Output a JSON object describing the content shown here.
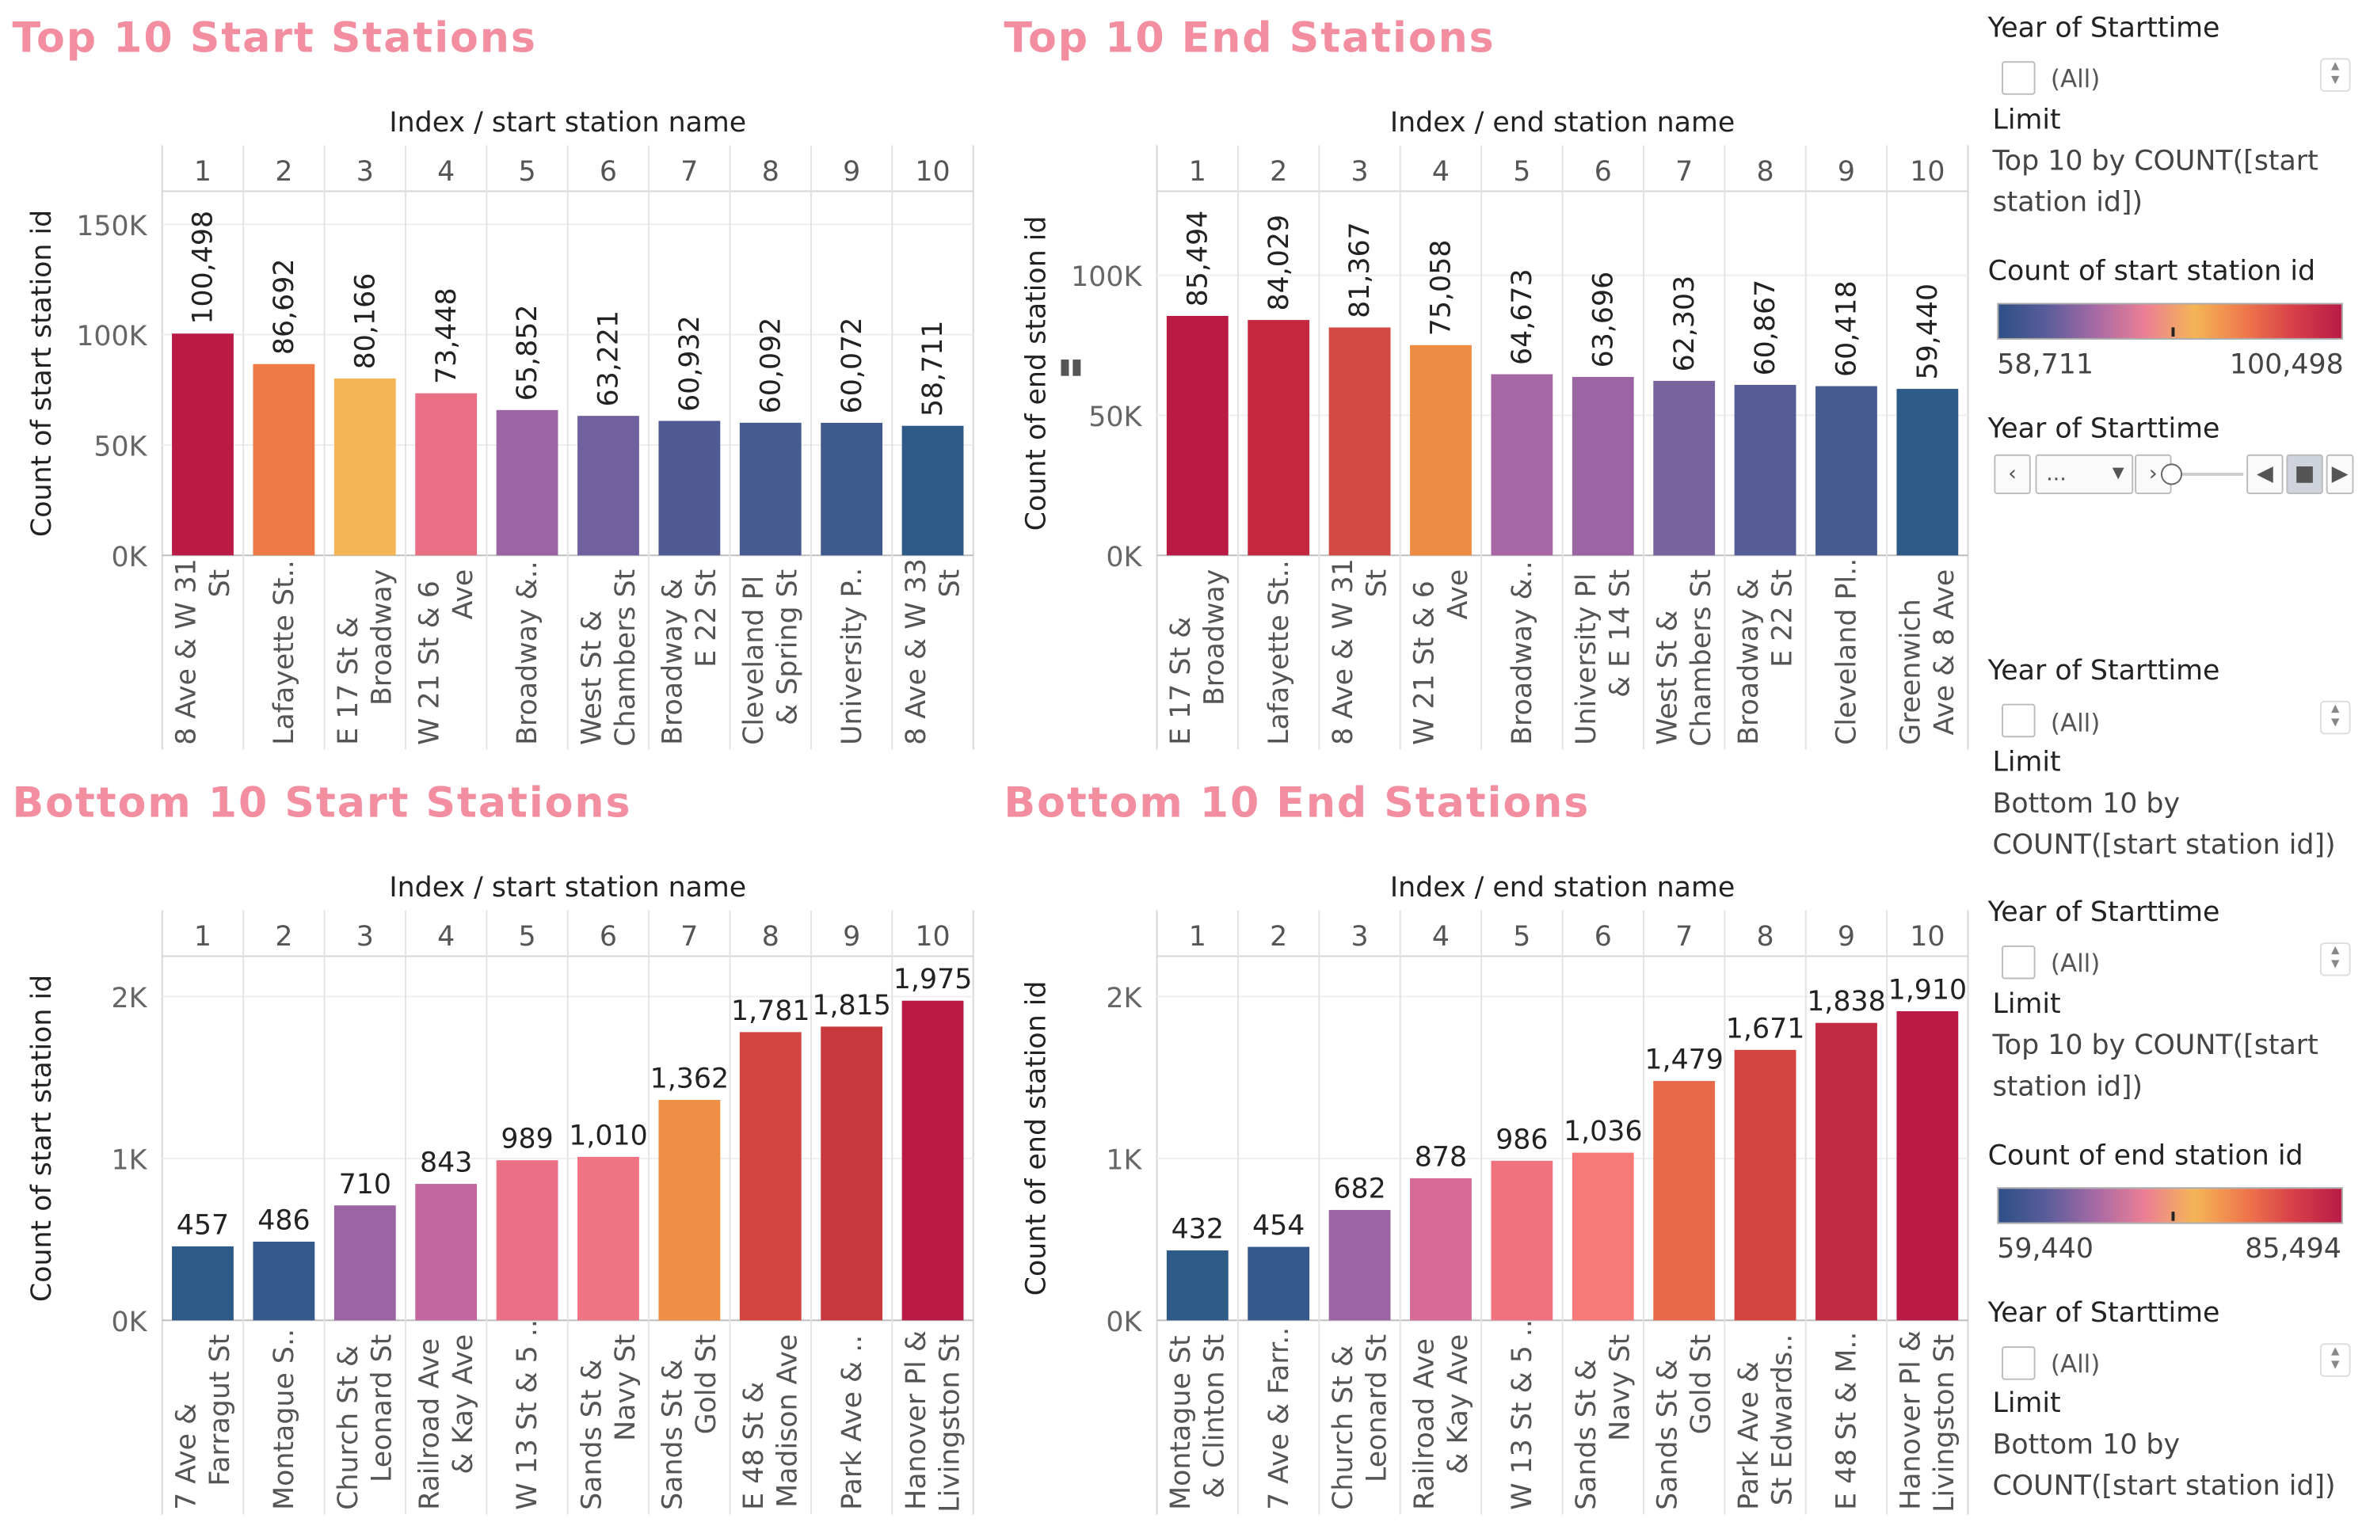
{
  "charts": [
    {
      "title": "Top 10 Start Stations",
      "header": "Index  /  start station name",
      "indices": [
        "1",
        "2",
        "3",
        "4",
        "5",
        "6",
        "7",
        "8",
        "9",
        "10"
      ],
      "ylabel": "Count of start station id",
      "yticks": [
        {
          "v": 0,
          "label": "0K"
        },
        {
          "v": 50000,
          "label": "50K"
        },
        {
          "v": 100000,
          "label": "100K"
        },
        {
          "v": 150000,
          "label": "150K"
        }
      ],
      "labels": [
        "100,498",
        "86,692",
        "80,166",
        "73,448",
        "65,852",
        "63,221",
        "60,932",
        "60,092",
        "60,072",
        "58,711"
      ],
      "names": [
        [
          "8 Ave & W 31",
          "St"
        ],
        [
          "Lafayette St.."
        ],
        [
          "E 17 St &",
          "Broadway"
        ],
        [
          "W 21 St & 6",
          "Ave"
        ],
        [
          "Broadway &.."
        ],
        [
          "West St &",
          "Chambers St"
        ],
        [
          "Broadway &",
          "E 22 St"
        ],
        [
          "Cleveland Pl",
          "& Spring St"
        ],
        [
          "University P.."
        ],
        [
          "8 Ave & W 33",
          "St"
        ]
      ]
    },
    {
      "title": "Top 10 End Stations",
      "header": "Index  /  end station name",
      "indices": [
        "1",
        "2",
        "3",
        "4",
        "5",
        "6",
        "7",
        "8",
        "9",
        "10"
      ],
      "ylabel": "Count of end station id",
      "yticks": [
        {
          "v": 0,
          "label": "0K"
        },
        {
          "v": 50000,
          "label": "50K"
        },
        {
          "v": 100000,
          "label": "100K"
        }
      ],
      "labels": [
        "85,494",
        "84,029",
        "81,367",
        "75,058",
        "64,673",
        "63,696",
        "62,303",
        "60,867",
        "60,418",
        "59,440"
      ],
      "names": [
        [
          "E 17 St &",
          "Broadway"
        ],
        [
          "Lafayette St.."
        ],
        [
          "8 Ave & W 31",
          "St"
        ],
        [
          "W 21 St & 6",
          "Ave"
        ],
        [
          "Broadway &.."
        ],
        [
          "University Pl",
          "& E 14 St"
        ],
        [
          "West St &",
          "Chambers St"
        ],
        [
          "Broadway &",
          "E 22 St"
        ],
        [
          "Cleveland Pl.."
        ],
        [
          "Greenwich",
          "Ave & 8 Ave"
        ]
      ]
    },
    {
      "title": "Bottom 10 Start Stations",
      "header": "Index  /  start station name",
      "indices": [
        "1",
        "2",
        "3",
        "4",
        "5",
        "6",
        "7",
        "8",
        "9",
        "10"
      ],
      "ylabel": "Count of start station id",
      "yticks": [
        {
          "v": 0,
          "label": "0K"
        },
        {
          "v": 1000,
          "label": "1K"
        },
        {
          "v": 2000,
          "label": "2K"
        }
      ],
      "labels": [
        "457",
        "486",
        "710",
        "843",
        "989",
        "1,010",
        "1,362",
        "1,781",
        "1,815",
        "1,975"
      ],
      "names": [
        [
          "7 Ave &",
          "Farragut St"
        ],
        [
          "Montague S.."
        ],
        [
          "Church St &",
          "Leonard St"
        ],
        [
          "Railroad Ave",
          "& Kay Ave"
        ],
        [
          "W 13 St & 5 .."
        ],
        [
          "Sands St &",
          "Navy St"
        ],
        [
          "Sands St &",
          "Gold St"
        ],
        [
          "E 48 St &",
          "Madison Ave"
        ],
        [
          "Park Ave & .."
        ],
        [
          "Hanover Pl &",
          "Livingston St"
        ]
      ]
    },
    {
      "title": "Bottom 10 End Stations",
      "header": "Index  /  end station name",
      "indices": [
        "1",
        "2",
        "3",
        "4",
        "5",
        "6",
        "7",
        "8",
        "9",
        "10"
      ],
      "ylabel": "Count of end station id",
      "yticks": [
        {
          "v": 0,
          "label": "0K"
        },
        {
          "v": 1000,
          "label": "1K"
        },
        {
          "v": 2000,
          "label": "2K"
        }
      ],
      "labels": [
        "432",
        "454",
        "682",
        "878",
        "986",
        "1,036",
        "1,479",
        "1,671",
        "1,838",
        "1,910"
      ],
      "names": [
        [
          "Montague St",
          "& Clinton St"
        ],
        [
          "7 Ave & Farr.."
        ],
        [
          "Church St &",
          "Leonard St"
        ],
        [
          "Railroad Ave",
          "& Kay Ave"
        ],
        [
          "W 13 St & 5 .."
        ],
        [
          "Sands St &",
          "Navy St"
        ],
        [
          "Sands St &",
          "Gold St"
        ],
        [
          "Park Ave &",
          "St Edwards.."
        ],
        [
          "E 48 St & M.."
        ],
        [
          "Hanover Pl &",
          "Livingston St"
        ]
      ]
    }
  ],
  "chart_data": [
    {
      "type": "bar",
      "title": "Top 10 Start Stations",
      "xlabel": "Index / start station name",
      "ylabel": "Count of start station id",
      "ylim": [
        0,
        165000
      ],
      "categories": [
        "8 Ave & W 31 St",
        "Lafayette St..",
        "E 17 St & Broadway",
        "W 21 St & 6 Ave",
        "Broadway &..",
        "West St & Chambers St",
        "Broadway & E 22 St",
        "Cleveland Pl & Spring St",
        "University P..",
        "8 Ave & W 33 St"
      ],
      "values": [
        100498,
        86692,
        80166,
        73448,
        65852,
        63221,
        60932,
        60092,
        60072,
        58711
      ],
      "colors": [
        "#b91b45",
        "#ed7a47",
        "#f4b556",
        "#ea6f85",
        "#9b64a3",
        "#70619e",
        "#4f5a93",
        "#465b8f",
        "#3f5a8c",
        "#2e5a87"
      ]
    },
    {
      "type": "bar",
      "title": "Top 10 End Stations",
      "xlabel": "Index / end station name",
      "ylabel": "Count of end station id",
      "ylim": [
        0,
        130000
      ],
      "categories": [
        "E 17 St & Broadway",
        "Lafayette St..",
        "8 Ave & W 31 St",
        "W 21 St & 6 Ave",
        "Broadway &..",
        "University Pl & E 14 St",
        "West St & Chambers St",
        "Broadway & E 22 St",
        "Cleveland Pl..",
        "Greenwich Ave & 8 Ave"
      ],
      "values": [
        85494,
        84029,
        81367,
        75058,
        64673,
        63696,
        62303,
        60867,
        60418,
        59440
      ],
      "colors": [
        "#b91b45",
        "#c4283f",
        "#d34a44",
        "#ef8c44",
        "#a767a4",
        "#9b64a3",
        "#7a649f",
        "#565c95",
        "#465b8f",
        "#2e5a87"
      ]
    },
    {
      "type": "bar",
      "title": "Bottom 10 Start Stations",
      "xlabel": "Index / start station name",
      "ylabel": "Count of start station id",
      "ylim": [
        0,
        2250
      ],
      "categories": [
        "7 Ave & Farragut St",
        "Montague S..",
        "Church St & Leonard St",
        "Railroad Ave & Kay Ave",
        "W 13 St & 5 ..",
        "Sands St & Navy St",
        "Sands St & Gold St",
        "E 48 St & Madison Ave",
        "Park Ave & ..",
        "Hanover Pl & Livingston St"
      ],
      "values": [
        457,
        486,
        710,
        843,
        989,
        1010,
        1362,
        1781,
        1815,
        1975
      ],
      "colors": [
        "#2e5a87",
        "#35598a",
        "#9b64a3",
        "#c466a0",
        "#ea6f85",
        "#ef7484",
        "#f08e46",
        "#d3433f",
        "#c8393f",
        "#b91b45"
      ]
    },
    {
      "type": "bar",
      "title": "Bottom 10 End Stations",
      "xlabel": "Index / end station name",
      "ylabel": "Count of end station id",
      "ylim": [
        0,
        2250
      ],
      "categories": [
        "Montague St & Clinton St",
        "7 Ave & Farr..",
        "Church St & Leonard St",
        "Railroad Ave & Kay Ave",
        "W 13 St & 5 ..",
        "Sands St & Navy St",
        "Sands St & Gold St",
        "Park Ave & St Edwards..",
        "E 48 St & M..",
        "Hanover Pl & Livingston St"
      ],
      "values": [
        432,
        454,
        682,
        878,
        986,
        1036,
        1479,
        1671,
        1838,
        1910
      ],
      "colors": [
        "#2e5a87",
        "#35598a",
        "#9b64a3",
        "#d76a96",
        "#ef737f",
        "#f67a78",
        "#e8694a",
        "#d3433f",
        "#c22b41",
        "#b91b45"
      ]
    }
  ],
  "sidebar": {
    "s1": {
      "year_label": "Year of Starttime",
      "all": "(All)",
      "limit_title": "Limit",
      "limit_text": "Top 10 by COUNT([start station id])"
    },
    "legend1": {
      "title": "Count of start station id",
      "min": "58,711",
      "max": "100,498"
    },
    "year_slider": {
      "title": "Year of Starttime",
      "value": "..."
    },
    "s2": {
      "year_label": "Year of Starttime",
      "all": "(All)",
      "limit_title": "Limit",
      "limit_text": "Bottom 10 by COUNT([start station id])"
    },
    "s3": {
      "year_label": "Year of Starttime",
      "all": "(All)",
      "limit_title": "Limit",
      "limit_text": "Top 10 by COUNT([start station id])"
    },
    "legend2": {
      "title": "Count of end station id",
      "min": "59,440",
      "max": "85,494"
    },
    "s4": {
      "year_label": "Year of Starttime",
      "all": "(All)",
      "limit_title": "Limit",
      "limit_text": "Bottom 10 by COUNT([start station id])"
    },
    "gradient_colors": [
      "#2e4f86",
      "#5b5d9b",
      "#a86aa5",
      "#ec7f95",
      "#f4b556",
      "#ef7a4c",
      "#d9404a",
      "#b91b45"
    ]
  }
}
